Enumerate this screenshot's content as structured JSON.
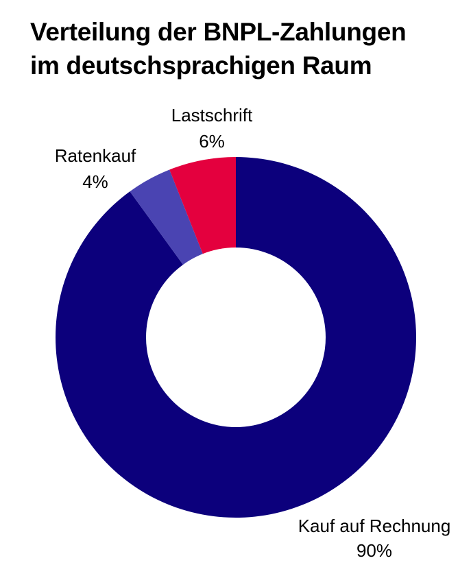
{
  "title_lines": [
    "Verteilung der BNPL-Zahlungen",
    "im deutschsprachigen Raum"
  ],
  "chart_data": {
    "type": "pie",
    "variant": "donut",
    "title": "Verteilung der BNPL-Zahlungen im deutschsprachigen Raum",
    "slices": [
      {
        "label": "Kauf auf Rechnung",
        "value": 90,
        "value_label": "90%",
        "color": "#0C007C"
      },
      {
        "label": "Ratenkauf",
        "value": 4,
        "value_label": "4%",
        "color": "#4A44B2"
      },
      {
        "label": "Lastschrift",
        "value": 6,
        "value_label": "6%",
        "color": "#E4003E"
      }
    ],
    "legend": "none"
  }
}
